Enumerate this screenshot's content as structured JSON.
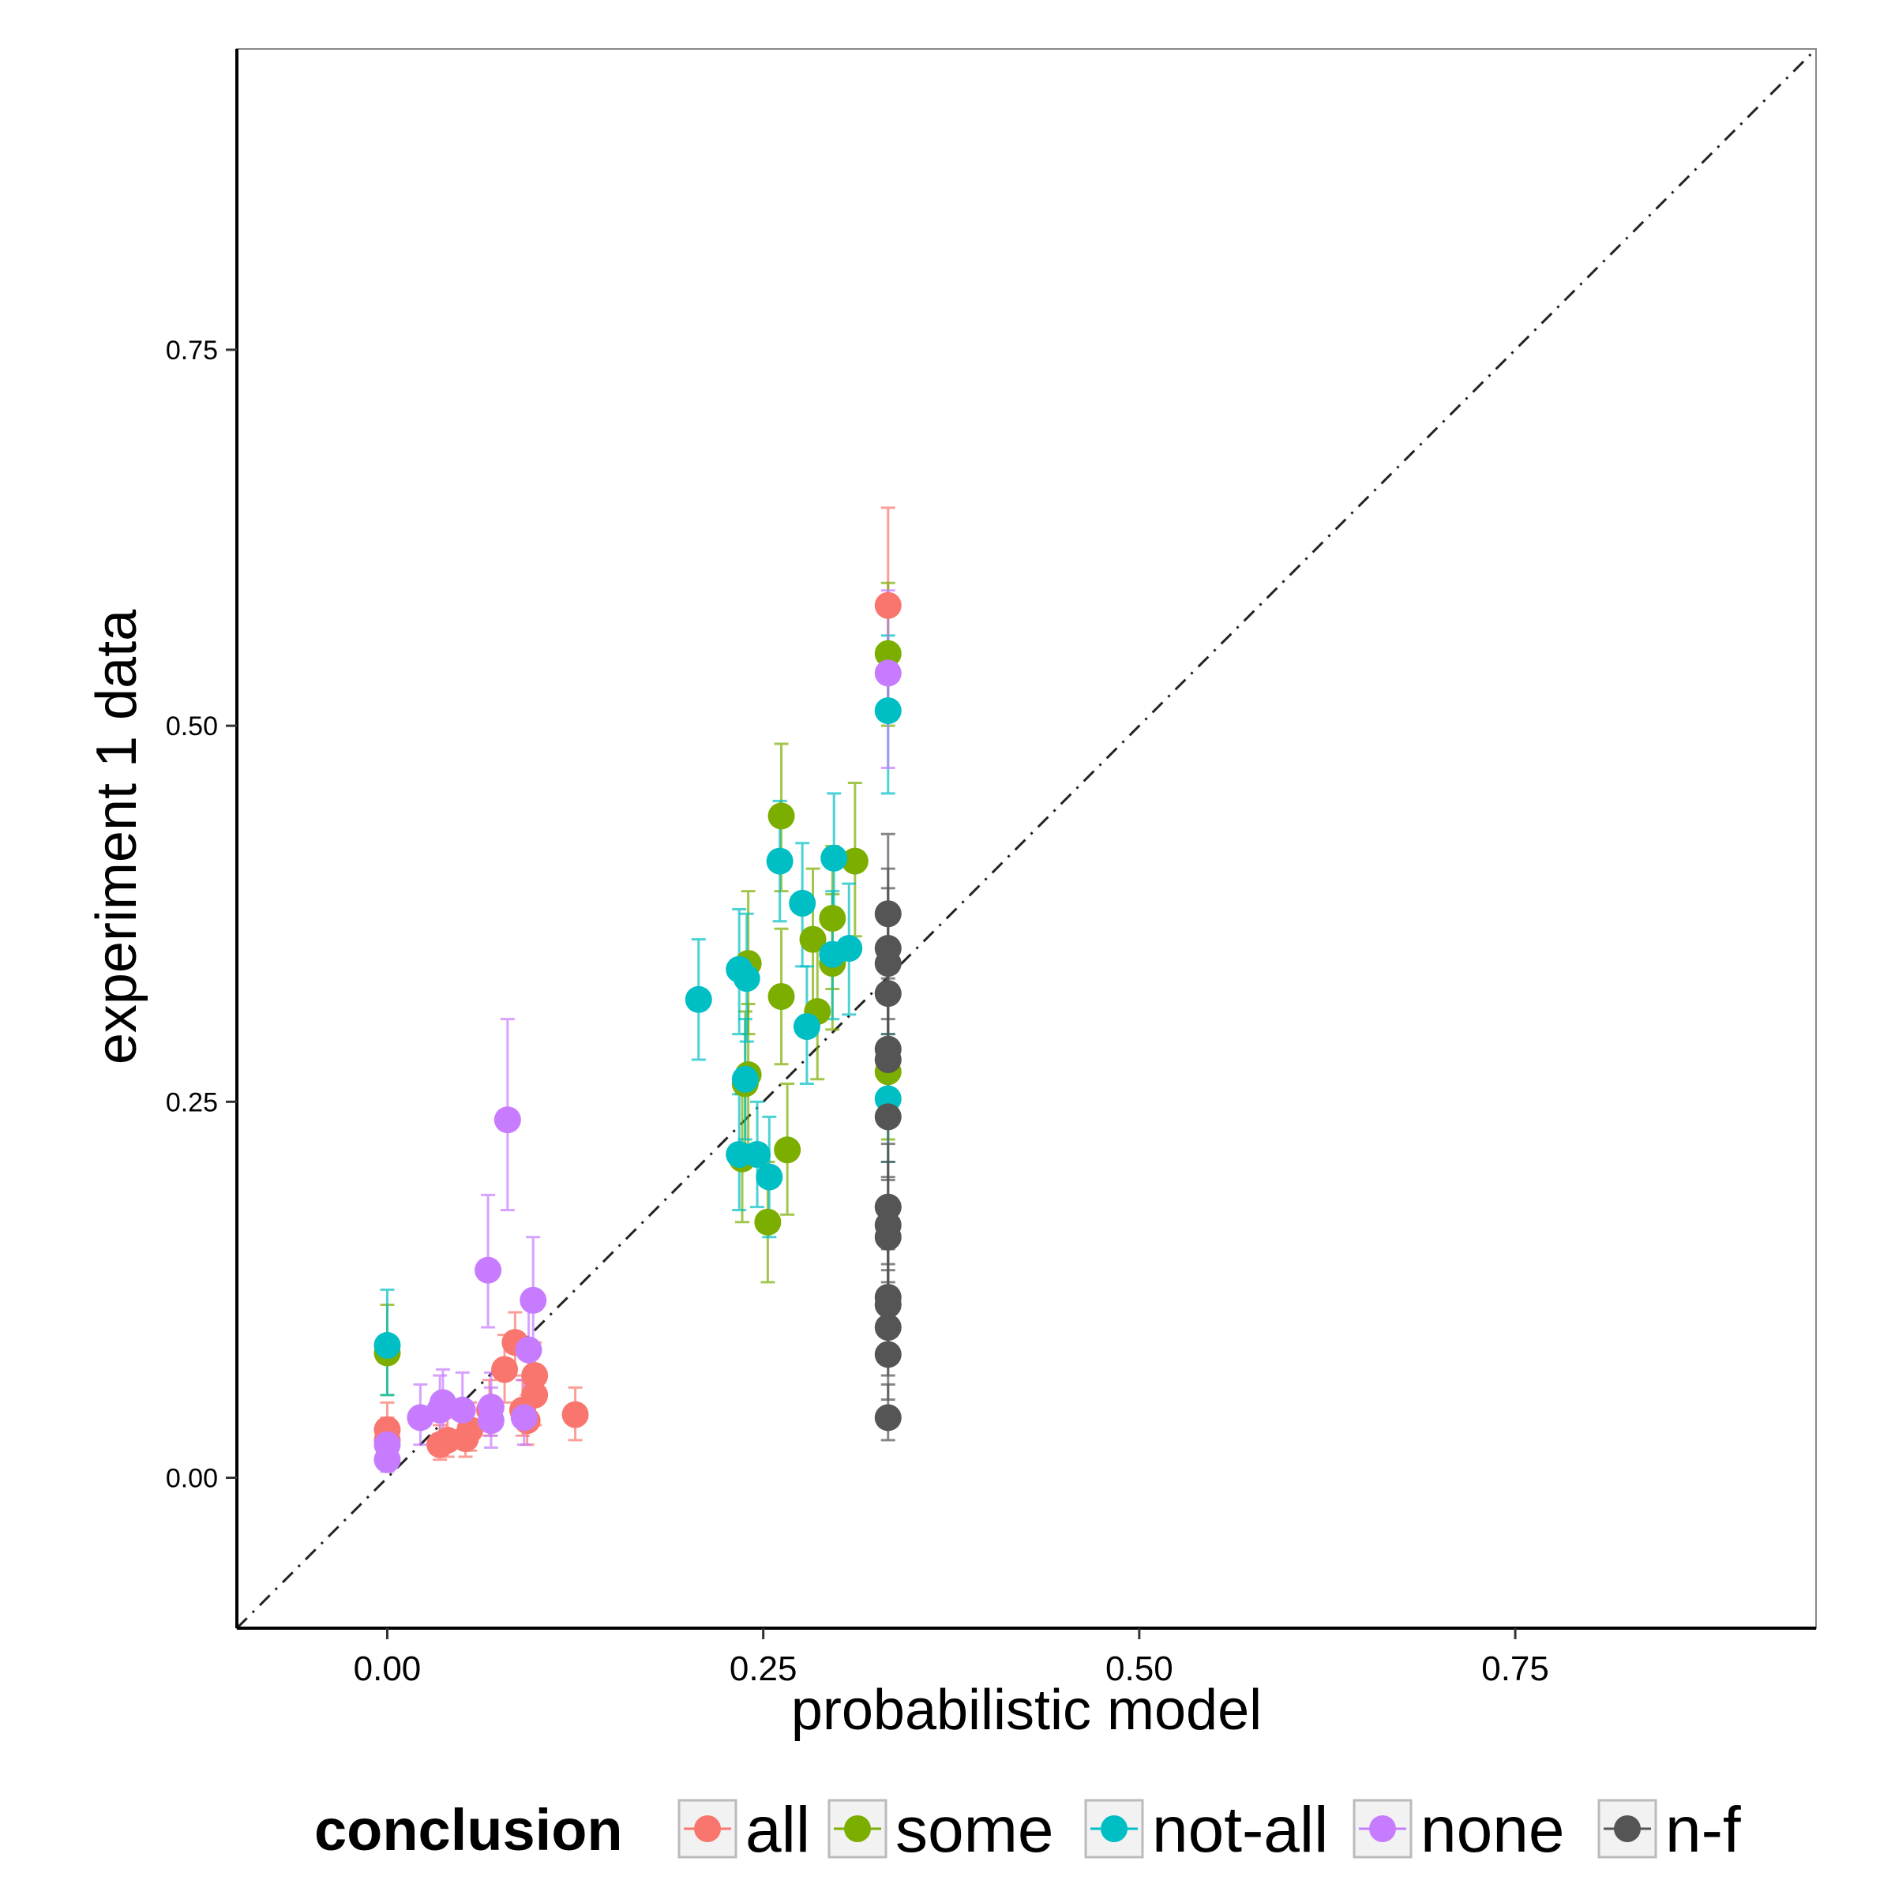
{
  "chart_data": {
    "type": "scatter",
    "xlabel": "probabilistic model",
    "ylabel": "experiment 1 data",
    "xlim": [
      -0.1,
      0.95
    ],
    "ylim": [
      -0.1,
      0.95
    ],
    "x_ticks": [
      "0.00",
      "0.25",
      "0.50",
      "0.75"
    ],
    "y_ticks": [
      "0.00",
      "0.25",
      "0.50",
      "0.75"
    ],
    "x_tick_values": [
      0,
      0.25,
      0.5,
      0.75
    ],
    "y_tick_values": [
      0,
      0.25,
      0.5,
      0.75
    ],
    "reference_line": "y = x (dash-dot)",
    "grid": false,
    "legend": {
      "title": "conclusion",
      "position": "bottom"
    },
    "colors": {
      "all": "#F8766D",
      "some": "#7CAE00",
      "not-all": "#00BFC4",
      "none": "#C77CFF",
      "n-f": "#555555"
    },
    "series": [
      {
        "name": "all",
        "points": [
          {
            "x": 0.333,
            "y": 0.58,
            "lo": 0.515,
            "hi": 0.645
          },
          {
            "x": 0.0,
            "y": 0.032,
            "lo": 0.018,
            "hi": 0.05
          },
          {
            "x": 0.0,
            "y": 0.025,
            "lo": 0.012,
            "hi": 0.04
          },
          {
            "x": 0.035,
            "y": 0.022,
            "lo": 0.012,
            "hi": 0.035
          },
          {
            "x": 0.04,
            "y": 0.025,
            "lo": 0.014,
            "hi": 0.04
          },
          {
            "x": 0.052,
            "y": 0.026,
            "lo": 0.014,
            "hi": 0.04
          },
          {
            "x": 0.055,
            "y": 0.032,
            "lo": 0.018,
            "hi": 0.05
          },
          {
            "x": 0.068,
            "y": 0.045,
            "lo": 0.028,
            "hi": 0.065
          },
          {
            "x": 0.078,
            "y": 0.072,
            "lo": 0.05,
            "hi": 0.095
          },
          {
            "x": 0.085,
            "y": 0.09,
            "lo": 0.068,
            "hi": 0.11
          },
          {
            "x": 0.093,
            "y": 0.038,
            "lo": 0.022,
            "hi": 0.055
          },
          {
            "x": 0.098,
            "y": 0.055,
            "lo": 0.035,
            "hi": 0.075
          },
          {
            "x": 0.098,
            "y": 0.068,
            "lo": 0.048,
            "hi": 0.09
          },
          {
            "x": 0.125,
            "y": 0.042,
            "lo": 0.025,
            "hi": 0.06
          },
          {
            "x": 0.09,
            "y": 0.045,
            "lo": 0.028,
            "hi": 0.065
          }
        ]
      },
      {
        "name": "some",
        "points": [
          {
            "x": 0.333,
            "y": 0.548,
            "lo": 0.5,
            "hi": 0.595
          },
          {
            "x": 0.333,
            "y": 0.27,
            "lo": 0.225,
            "hi": 0.32
          },
          {
            "x": 0.0,
            "y": 0.083,
            "lo": 0.055,
            "hi": 0.115
          },
          {
            "x": 0.236,
            "y": 0.212,
            "lo": 0.17,
            "hi": 0.255
          },
          {
            "x": 0.238,
            "y": 0.262,
            "lo": 0.215,
            "hi": 0.31
          },
          {
            "x": 0.24,
            "y": 0.268,
            "lo": 0.22,
            "hi": 0.315
          },
          {
            "x": 0.24,
            "y": 0.342,
            "lo": 0.295,
            "hi": 0.39
          },
          {
            "x": 0.253,
            "y": 0.17,
            "lo": 0.13,
            "hi": 0.21
          },
          {
            "x": 0.262,
            "y": 0.44,
            "lo": 0.39,
            "hi": 0.488
          },
          {
            "x": 0.262,
            "y": 0.32,
            "lo": 0.275,
            "hi": 0.365
          },
          {
            "x": 0.266,
            "y": 0.218,
            "lo": 0.175,
            "hi": 0.262
          },
          {
            "x": 0.283,
            "y": 0.358,
            "lo": 0.31,
            "hi": 0.405
          },
          {
            "x": 0.286,
            "y": 0.31,
            "lo": 0.265,
            "hi": 0.355
          },
          {
            "x": 0.296,
            "y": 0.372,
            "lo": 0.325,
            "hi": 0.42
          },
          {
            "x": 0.296,
            "y": 0.342,
            "lo": 0.298,
            "hi": 0.388
          },
          {
            "x": 0.311,
            "y": 0.41,
            "lo": 0.36,
            "hi": 0.462
          }
        ]
      },
      {
        "name": "not-all",
        "points": [
          {
            "x": 0.333,
            "y": 0.51,
            "lo": 0.455,
            "hi": 0.56
          },
          {
            "x": 0.333,
            "y": 0.252,
            "lo": 0.21,
            "hi": 0.295
          },
          {
            "x": 0.0,
            "y": 0.088,
            "lo": 0.055,
            "hi": 0.125
          },
          {
            "x": 0.207,
            "y": 0.318,
            "lo": 0.278,
            "hi": 0.358
          },
          {
            "x": 0.234,
            "y": 0.215,
            "lo": 0.178,
            "hi": 0.255
          },
          {
            "x": 0.234,
            "y": 0.338,
            "lo": 0.295,
            "hi": 0.378
          },
          {
            "x": 0.238,
            "y": 0.265,
            "lo": 0.225,
            "hi": 0.305
          },
          {
            "x": 0.239,
            "y": 0.332,
            "lo": 0.29,
            "hi": 0.375
          },
          {
            "x": 0.246,
            "y": 0.215,
            "lo": 0.18,
            "hi": 0.25
          },
          {
            "x": 0.254,
            "y": 0.2,
            "lo": 0.16,
            "hi": 0.24
          },
          {
            "x": 0.261,
            "y": 0.41,
            "lo": 0.37,
            "hi": 0.45
          },
          {
            "x": 0.276,
            "y": 0.382,
            "lo": 0.34,
            "hi": 0.422
          },
          {
            "x": 0.279,
            "y": 0.3,
            "lo": 0.262,
            "hi": 0.34
          },
          {
            "x": 0.296,
            "y": 0.348,
            "lo": 0.305,
            "hi": 0.39
          },
          {
            "x": 0.297,
            "y": 0.412,
            "lo": 0.37,
            "hi": 0.455
          },
          {
            "x": 0.307,
            "y": 0.352,
            "lo": 0.308,
            "hi": 0.395
          }
        ]
      },
      {
        "name": "none",
        "points": [
          {
            "x": 0.333,
            "y": 0.535,
            "lo": 0.472,
            "hi": 0.59
          },
          {
            "x": 0.0,
            "y": 0.022,
            "lo": 0.01,
            "hi": 0.038
          },
          {
            "x": 0.0,
            "y": 0.012,
            "lo": 0.004,
            "hi": 0.025
          },
          {
            "x": 0.022,
            "y": 0.04,
            "lo": 0.022,
            "hi": 0.062
          },
          {
            "x": 0.035,
            "y": 0.045,
            "lo": 0.025,
            "hi": 0.068
          },
          {
            "x": 0.037,
            "y": 0.05,
            "lo": 0.03,
            "hi": 0.072
          },
          {
            "x": 0.05,
            "y": 0.045,
            "lo": 0.025,
            "hi": 0.07
          },
          {
            "x": 0.067,
            "y": 0.138,
            "lo": 0.1,
            "hi": 0.188
          },
          {
            "x": 0.069,
            "y": 0.038,
            "lo": 0.02,
            "hi": 0.06
          },
          {
            "x": 0.069,
            "y": 0.047,
            "lo": 0.028,
            "hi": 0.07
          },
          {
            "x": 0.08,
            "y": 0.238,
            "lo": 0.178,
            "hi": 0.305
          },
          {
            "x": 0.091,
            "y": 0.04,
            "lo": 0.022,
            "hi": 0.065
          },
          {
            "x": 0.094,
            "y": 0.085,
            "lo": 0.055,
            "hi": 0.118
          },
          {
            "x": 0.097,
            "y": 0.118,
            "lo": 0.085,
            "hi": 0.16
          }
        ]
      },
      {
        "name": "n-f",
        "points": [
          {
            "x": 0.333,
            "y": 0.375,
            "lo": 0.325,
            "hi": 0.428
          },
          {
            "x": 0.333,
            "y": 0.352,
            "lo": 0.305,
            "hi": 0.405
          },
          {
            "x": 0.333,
            "y": 0.342,
            "lo": 0.295,
            "hi": 0.392
          },
          {
            "x": 0.333,
            "y": 0.322,
            "lo": 0.278,
            "hi": 0.372
          },
          {
            "x": 0.333,
            "y": 0.285,
            "lo": 0.242,
            "hi": 0.332
          },
          {
            "x": 0.333,
            "y": 0.278,
            "lo": 0.235,
            "hi": 0.325
          },
          {
            "x": 0.333,
            "y": 0.24,
            "lo": 0.198,
            "hi": 0.285
          },
          {
            "x": 0.333,
            "y": 0.18,
            "lo": 0.142,
            "hi": 0.222
          },
          {
            "x": 0.333,
            "y": 0.168,
            "lo": 0.13,
            "hi": 0.21
          },
          {
            "x": 0.333,
            "y": 0.16,
            "lo": 0.122,
            "hi": 0.2
          },
          {
            "x": 0.333,
            "y": 0.12,
            "lo": 0.085,
            "hi": 0.158
          },
          {
            "x": 0.333,
            "y": 0.115,
            "lo": 0.08,
            "hi": 0.152
          },
          {
            "x": 0.333,
            "y": 0.1,
            "lo": 0.068,
            "hi": 0.138
          },
          {
            "x": 0.333,
            "y": 0.082,
            "lo": 0.052,
            "hi": 0.118
          },
          {
            "x": 0.333,
            "y": 0.04,
            "lo": 0.025,
            "hi": 0.062
          }
        ]
      }
    ]
  }
}
